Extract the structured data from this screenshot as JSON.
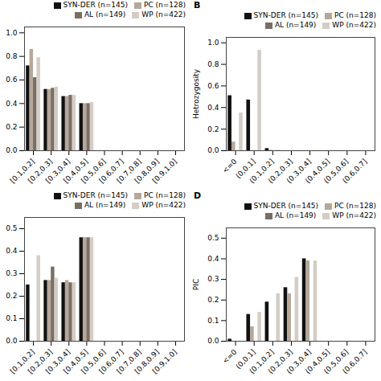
{
  "chart_data": [
    {
      "type": "bar",
      "categories": [
        "[0.1,0.2]",
        "[0.2,0.3]",
        "[0.3,0.4]",
        "[0.4,0.5]",
        "[0.5,0.6]",
        "[0.6,0.7]",
        "[0.7,0.8]",
        "[0.8,0.9]",
        "[0.9,1.0]"
      ],
      "series": [
        {
          "name": "SYN-DER (n=145)",
          "color": "#111111",
          "values": [
            0.72,
            0.52,
            0.46,
            0.4,
            0,
            0,
            0,
            0,
            0
          ]
        },
        {
          "name": "PC (n=128)",
          "color": "#b5a89a",
          "values": [
            0.86,
            0.52,
            0.46,
            0.4,
            0,
            0,
            0,
            0,
            0
          ]
        },
        {
          "name": "AL (n=149)",
          "color": "#7a6e64",
          "values": [
            0.62,
            0.53,
            0.47,
            0.4,
            0,
            0,
            0,
            0,
            0
          ]
        },
        {
          "name": "WP (n=422)",
          "color": "#d4cdc6",
          "values": [
            0.79,
            0.54,
            0.47,
            0.41,
            0,
            0,
            0,
            0,
            0
          ]
        }
      ],
      "ylim": [
        0,
        1.05
      ],
      "yticks": [
        {
          "value": 0,
          "label": "0.0"
        },
        0.2,
        0.4,
        0.6,
        0.8,
        {
          "value": 1.0,
          "label": "1.0"
        }
      ],
      "grid": false,
      "legend": "upper right"
    },
    {
      "type": "bar",
      "title": "B",
      "ylabel": "Hetrozygosity",
      "categories": [
        "<=0",
        "(0,0.1]",
        "(0.1,0.2]",
        "(0.2,0.3]",
        "(0.3,0.4]",
        "(0.4,0.5]",
        "(0.5,0.6]",
        "(0.6,0.7]"
      ],
      "series": [
        {
          "name": "SYN-DER (n=145)",
          "color": "#111111",
          "values": [
            0.51,
            0.47,
            0.02,
            0,
            0,
            0,
            0,
            0
          ]
        },
        {
          "name": "PC (n=128)",
          "color": "#b5a89a",
          "values": [
            0.08,
            0.0,
            0.005,
            0,
            0,
            0,
            0,
            0
          ]
        },
        {
          "name": "AL (n=149)",
          "color": "#7a6e64",
          "values": [
            0.0,
            0.0,
            0.0,
            0,
            0,
            0,
            0,
            0
          ]
        },
        {
          "name": "WP (n=422)",
          "color": "#d4cdc6",
          "values": [
            0.35,
            0.93,
            0.005,
            0,
            0,
            0,
            0,
            0
          ]
        }
      ],
      "ylim": [
        0,
        1.05
      ],
      "yticks": [
        {
          "value": 0,
          "label": "0.0"
        },
        0.2,
        0.4,
        0.6,
        0.8,
        {
          "value": 1.0,
          "label": "1.0"
        }
      ],
      "grid": false,
      "legend": "upper right"
    },
    {
      "type": "bar",
      "categories": [
        "[0.1,0.2]",
        "[0.2,0.3]",
        "[0.3,0.4]",
        "[0.4,0.5]",
        "[0.5,0.6]",
        "[0.6,0.7]",
        "[0.7,0.8]",
        "[0.8,0.9]",
        "[0.9,1.0]"
      ],
      "series": [
        {
          "name": "SYN-DER (n=145)",
          "color": "#111111",
          "values": [
            0.25,
            0.27,
            0.26,
            0.46,
            0,
            0,
            0,
            0,
            0
          ]
        },
        {
          "name": "PC (n=128)",
          "color": "#b5a89a",
          "values": [
            0.0,
            0.27,
            0.27,
            0.46,
            0,
            0,
            0,
            0,
            0
          ]
        },
        {
          "name": "AL (n=149)",
          "color": "#7a6e64",
          "values": [
            0.0,
            0.33,
            0.26,
            0.46,
            0,
            0,
            0,
            0,
            0
          ]
        },
        {
          "name": "WP (n=422)",
          "color": "#d4cdc6",
          "values": [
            0.38,
            0.28,
            0.26,
            0.46,
            0,
            0,
            0,
            0,
            0
          ]
        }
      ],
      "ylim": [
        0,
        0.55
      ],
      "yticks": [
        {
          "value": 0,
          "label": "0.0"
        },
        0.1,
        0.2,
        0.3,
        0.4,
        0.5
      ],
      "grid": false,
      "legend": "upper right"
    },
    {
      "type": "bar",
      "title": "D",
      "ylabel": "PIC",
      "categories": [
        "<=0",
        "(0,0.1]",
        "(0.1,0.2]",
        "(0.2,0.3]",
        "(0.3,0.4]",
        "(0.4,0.5]",
        "(0.5,0.6]",
        "(0.6,0.7]"
      ],
      "series": [
        {
          "name": "SYN-DER (n=145)",
          "color": "#111111",
          "values": [
            0.01,
            0.13,
            0.19,
            0.26,
            0.4,
            0,
            0,
            0
          ]
        },
        {
          "name": "PC (n=128)",
          "color": "#b5a89a",
          "values": [
            0.0,
            0.07,
            0.0,
            0.23,
            0.39,
            0,
            0,
            0
          ]
        },
        {
          "name": "AL (n=149)",
          "color": "#7a6e64",
          "values": [
            0.0,
            0.0,
            0.0,
            0.0,
            0.0,
            0,
            0,
            0
          ]
        },
        {
          "name": "WP (n=422)",
          "color": "#d4cdc6",
          "values": [
            0.0,
            0.14,
            0.23,
            0.31,
            0.39,
            0,
            0,
            0
          ]
        }
      ],
      "ylim": [
        0,
        0.55
      ],
      "yticks": [
        {
          "value": 0,
          "label": "0.0"
        },
        0.1,
        0.2,
        0.3,
        0.4,
        0.5
      ],
      "grid": false,
      "legend": "upper right"
    }
  ]
}
